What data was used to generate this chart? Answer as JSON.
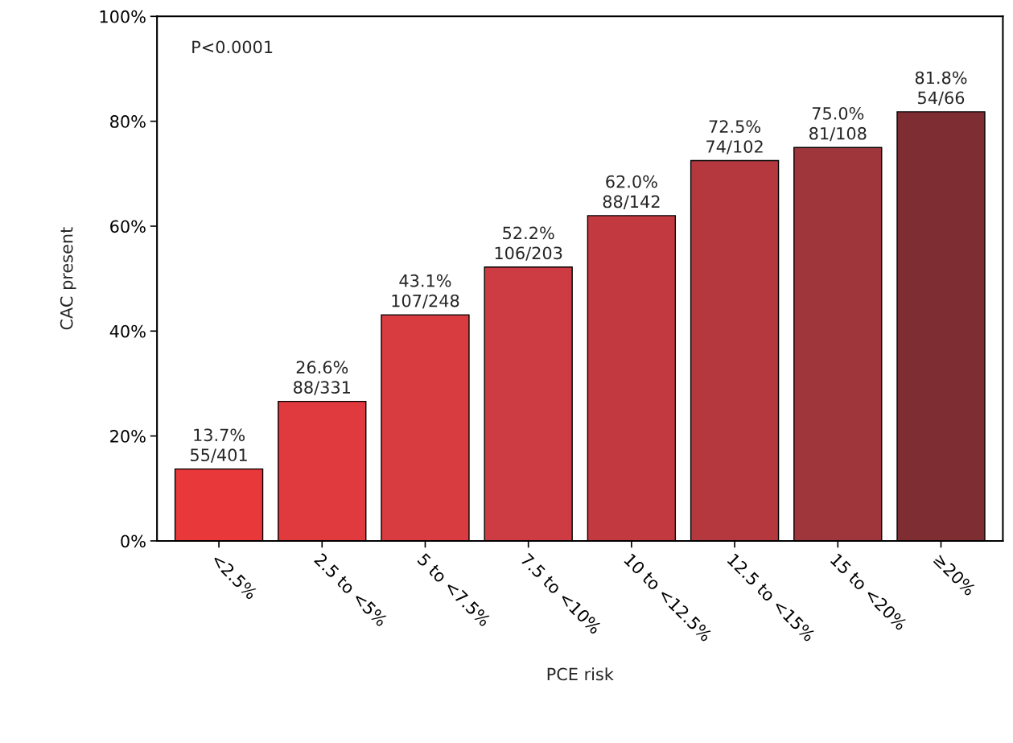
{
  "chart_data": {
    "type": "bar",
    "xlabel": "PCE risk",
    "ylabel": "CAC present",
    "categories": [
      "<2.5%",
      "2.5 to <5%",
      "5 to <7.5%",
      "7.5 to <10%",
      "10 to <12.5%",
      "12.5 to <15%",
      "15 to <20%",
      "≥20%"
    ],
    "values": [
      13.7,
      26.6,
      43.1,
      52.2,
      62.0,
      72.5,
      75.0,
      81.8
    ],
    "value_labels": [
      "13.7%\n55/401",
      "26.6%\n88/331",
      "43.1%\n107/248",
      "52.2%\n106/203",
      "62.0%\n88/142",
      "72.5%\n74/102",
      "75.0%\n81/108",
      "81.8%\n54/66"
    ],
    "colors": [
      "#e8383a",
      "#e03a3e",
      "#d83c40",
      "#cc3c42",
      "#c23a40",
      "#b4383e",
      "#9e363c",
      "#7e2e33"
    ],
    "ylim": [
      0,
      100
    ],
    "yticks": [
      {
        "value": 0,
        "label": "0%"
      },
      {
        "value": 20,
        "label": "20%"
      },
      {
        "value": 40,
        "label": "40%"
      },
      {
        "value": 60,
        "label": "60%"
      },
      {
        "value": 80,
        "label": "80%"
      },
      {
        "value": 100,
        "label": "100%"
      }
    ],
    "annotations": [
      "P<0.0001"
    ],
    "grid": false,
    "legend": false
  }
}
